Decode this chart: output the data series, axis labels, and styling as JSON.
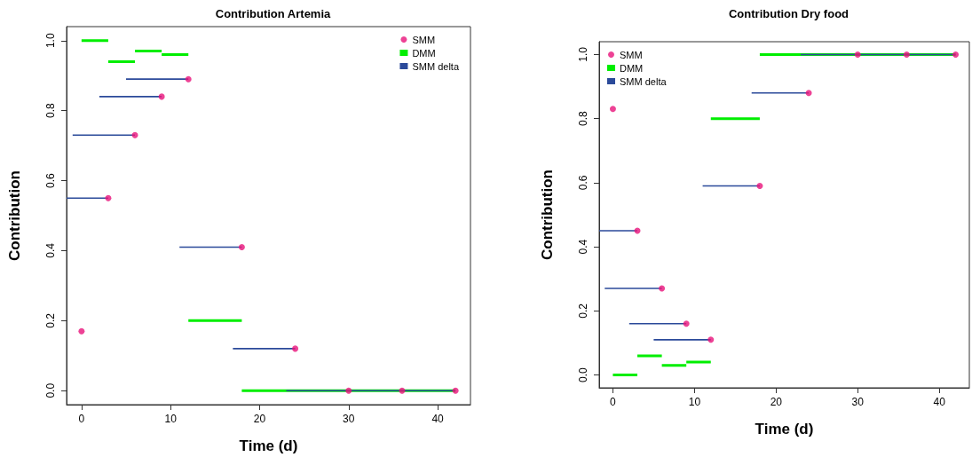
{
  "chart_data": [
    {
      "type": "line",
      "title": "Contribution Artemia",
      "xlabel": "Time (d)",
      "ylabel": "Contribution",
      "legend": "top right",
      "grid": false,
      "line_style": "solid",
      "xlim": [
        -1.68,
        43.68
      ],
      "xticks": [
        0,
        10,
        20,
        30,
        40
      ],
      "ylim": [
        -0.04,
        1.04
      ],
      "yticks": [
        {
          "value": 0,
          "label": "0.0"
        },
        {
          "value": 0.2,
          "label": "0.2"
        },
        {
          "value": 0.4,
          "label": "0.4"
        },
        {
          "value": 0.6,
          "label": "0.6"
        },
        {
          "value": 0.8,
          "label": "0.8"
        },
        {
          "value": 1,
          "label": "1.0"
        }
      ],
      "series": [
        {
          "name": "SMM",
          "type": "scatter",
          "marker": "circle",
          "color": "#e8137a",
          "x": [
            0,
            3,
            6,
            9,
            12,
            18,
            24,
            30,
            36,
            42
          ],
          "values": [
            0.17,
            0.55,
            0.73,
            0.84,
            0.89,
            0.41,
            0.12,
            0,
            0,
            0
          ]
        },
        {
          "name": "DMM",
          "type": "line",
          "marker": "none",
          "color": "#00ee00",
          "x": [
            0,
            3,
            null,
            3,
            6,
            null,
            6,
            9,
            null,
            9,
            12,
            null,
            12,
            18,
            null,
            18,
            42
          ],
          "values": [
            1,
            1,
            null,
            0.94,
            0.94,
            null,
            0.97,
            0.97,
            null,
            0.96,
            0.96,
            null,
            0.2,
            0.2,
            null,
            0,
            0
          ]
        },
        {
          "name": "SMM delta",
          "type": "line",
          "marker": "none",
          "color": "#2b4a9a",
          "x": [
            -1.68,
            3,
            null,
            -1,
            6,
            null,
            2,
            9,
            null,
            5,
            12,
            null,
            11,
            18,
            null,
            17,
            24,
            null,
            23,
            30,
            null,
            29,
            36,
            null,
            35,
            42
          ],
          "values": [
            0.55,
            0.55,
            null,
            0.73,
            0.73,
            null,
            0.84,
            0.84,
            null,
            0.89,
            0.89,
            null,
            0.41,
            0.41,
            null,
            0.12,
            0.12,
            null,
            0,
            0,
            null,
            0,
            0,
            null,
            0,
            0
          ]
        }
      ]
    },
    {
      "type": "line",
      "title": "Contribution Dry food",
      "xlabel": "Time (d)",
      "ylabel": "Contribution",
      "legend": "top left",
      "grid": false,
      "line_style": "solid",
      "xlim": [
        -1.68,
        43.68
      ],
      "xticks": [
        0,
        10,
        20,
        30,
        40
      ],
      "ylim": [
        -0.04,
        1.04
      ],
      "yticks": [
        {
          "value": 0,
          "label": "0.0"
        },
        {
          "value": 0.2,
          "label": "0.2"
        },
        {
          "value": 0.4,
          "label": "0.4"
        },
        {
          "value": 0.6,
          "label": "0.6"
        },
        {
          "value": 0.8,
          "label": "0.8"
        },
        {
          "value": 1,
          "label": "1.0"
        }
      ],
      "series": [
        {
          "name": "SMM",
          "type": "scatter",
          "marker": "circle",
          "color": "#e8137a",
          "x": [
            0,
            3,
            6,
            9,
            12,
            18,
            24,
            30,
            36,
            42
          ],
          "values": [
            0.83,
            0.45,
            0.27,
            0.16,
            0.11,
            0.59,
            0.88,
            1,
            1,
            1
          ]
        },
        {
          "name": "DMM",
          "type": "line",
          "marker": "none",
          "color": "#00ee00",
          "x": [
            0,
            3,
            null,
            3,
            6,
            null,
            6,
            9,
            null,
            9,
            12,
            null,
            12,
            18,
            null,
            18,
            42
          ],
          "values": [
            0,
            0,
            null,
            0.06,
            0.06,
            null,
            0.03,
            0.03,
            null,
            0.04,
            0.04,
            null,
            0.8,
            0.8,
            null,
            1,
            1
          ]
        },
        {
          "name": "SMM delta",
          "type": "line",
          "marker": "none",
          "color": "#2b4a9a",
          "x": [
            -1.68,
            3,
            null,
            -1,
            6,
            null,
            2,
            9,
            null,
            5,
            12,
            null,
            11,
            18,
            null,
            17,
            24,
            null,
            23,
            30,
            null,
            29,
            36,
            null,
            35,
            42
          ],
          "values": [
            0.45,
            0.45,
            null,
            0.27,
            0.27,
            null,
            0.16,
            0.16,
            null,
            0.11,
            0.11,
            null,
            0.59,
            0.59,
            null,
            0.88,
            0.88,
            null,
            1,
            1,
            null,
            1,
            1,
            null,
            1,
            1
          ]
        }
      ]
    }
  ]
}
